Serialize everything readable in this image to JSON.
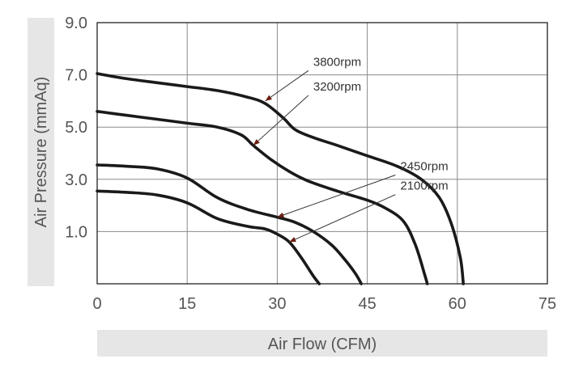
{
  "chart_data": {
    "type": "line",
    "title": "",
    "xlabel": "Air Flow (CFM)",
    "ylabel": "Air Pressure (mmAq)",
    "xlim": [
      0,
      75
    ],
    "ylim": [
      -1,
      9
    ],
    "x_ticks": [
      "0",
      "15",
      "30",
      "45",
      "60",
      "75"
    ],
    "y_ticks": [
      "9.0",
      "7.0",
      "5.0",
      "3.0",
      "1.0"
    ],
    "grid": true,
    "series": [
      {
        "name": "3800rpm",
        "points": [
          [
            0,
            7.05
          ],
          [
            5,
            6.85
          ],
          [
            10,
            6.7
          ],
          [
            15,
            6.55
          ],
          [
            20,
            6.4
          ],
          [
            25,
            6.15
          ],
          [
            28,
            5.9
          ],
          [
            31,
            5.35
          ],
          [
            33,
            4.9
          ],
          [
            36,
            4.6
          ],
          [
            40,
            4.3
          ],
          [
            45,
            3.9
          ],
          [
            50,
            3.5
          ],
          [
            54,
            3.0
          ],
          [
            57,
            2.3
          ],
          [
            59,
            1.3
          ],
          [
            60.5,
            0.0
          ],
          [
            61,
            -1.0
          ]
        ]
      },
      {
        "name": "3200rpm",
        "points": [
          [
            0,
            5.6
          ],
          [
            5,
            5.45
          ],
          [
            10,
            5.3
          ],
          [
            15,
            5.15
          ],
          [
            20,
            5.0
          ],
          [
            24,
            4.7
          ],
          [
            26,
            4.3
          ],
          [
            29,
            3.75
          ],
          [
            32,
            3.3
          ],
          [
            35,
            2.95
          ],
          [
            40,
            2.55
          ],
          [
            45,
            2.2
          ],
          [
            48,
            1.9
          ],
          [
            51,
            1.4
          ],
          [
            53,
            0.5
          ],
          [
            54.5,
            -0.6
          ],
          [
            55,
            -1.0
          ]
        ]
      },
      {
        "name": "2450rpm",
        "points": [
          [
            0,
            3.55
          ],
          [
            5,
            3.5
          ],
          [
            10,
            3.4
          ],
          [
            15,
            3.05
          ],
          [
            20,
            2.3
          ],
          [
            25,
            1.85
          ],
          [
            30,
            1.55
          ],
          [
            33,
            1.35
          ],
          [
            36,
            1.0
          ],
          [
            39,
            0.5
          ],
          [
            41,
            0.0
          ],
          [
            43,
            -0.6
          ],
          [
            44,
            -1.0
          ]
        ]
      },
      {
        "name": "2100rpm",
        "points": [
          [
            0,
            2.55
          ],
          [
            5,
            2.5
          ],
          [
            10,
            2.4
          ],
          [
            15,
            2.1
          ],
          [
            20,
            1.5
          ],
          [
            25,
            1.2
          ],
          [
            28,
            1.1
          ],
          [
            30,
            0.9
          ],
          [
            32,
            0.6
          ],
          [
            34,
            0.0
          ],
          [
            36,
            -0.7
          ],
          [
            37,
            -1.0
          ]
        ]
      }
    ],
    "annotations": [
      {
        "series": "3800rpm",
        "text": "3800rpm",
        "anchor": [
          28,
          6.0
        ],
        "text_pos": [
          36,
          7.35
        ]
      },
      {
        "series": "3200rpm",
        "text": "3200rpm",
        "anchor": [
          26,
          4.3
        ],
        "text_pos": [
          36,
          6.4
        ]
      },
      {
        "series": "2450rpm",
        "text": "2450rpm",
        "anchor": [
          30,
          1.55
        ],
        "text_pos": [
          50.5,
          3.35
        ]
      },
      {
        "series": "2100rpm",
        "text": "2100rpm",
        "anchor": [
          32,
          0.6
        ],
        "text_pos": [
          50.5,
          2.6
        ]
      }
    ]
  }
}
